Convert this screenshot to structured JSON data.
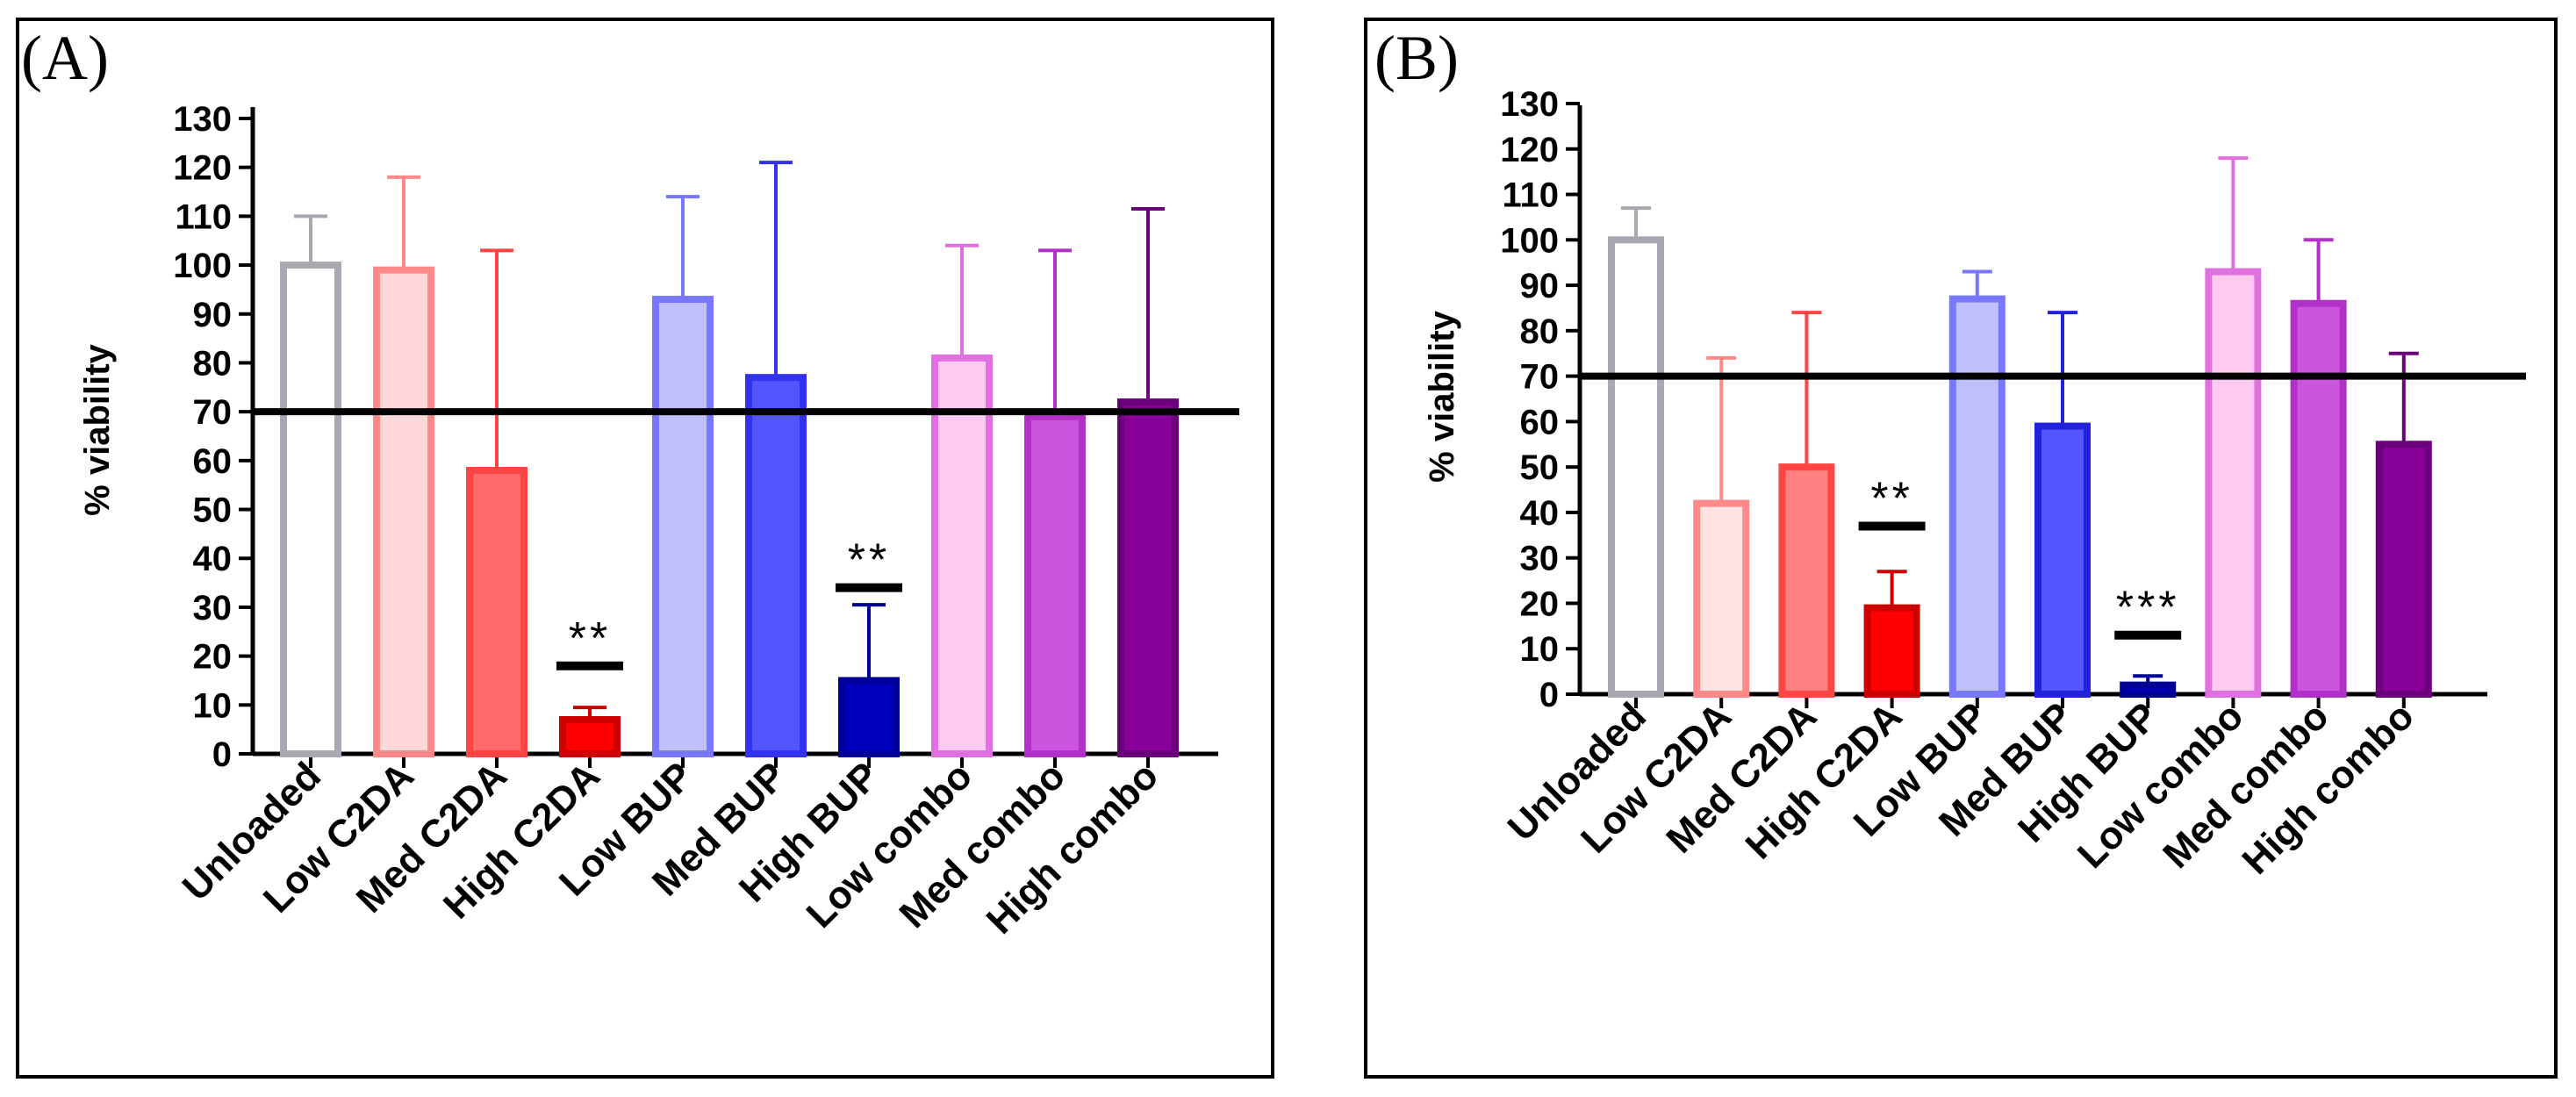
{
  "chart_data": [
    {
      "type": "bar",
      "panel_label": "(A)",
      "ylabel": "% viability",
      "xlabel": "",
      "ylim": [
        0,
        130
      ],
      "yticks": [
        0,
        10,
        20,
        30,
        40,
        50,
        60,
        70,
        80,
        90,
        100,
        110,
        120,
        130
      ],
      "reference_line": 70,
      "categories": [
        "Unloaded",
        "Low C2DA",
        "Med C2DA",
        "High C2DA",
        "Low BUP",
        "Med BUP",
        "High BUP",
        "Low combo",
        "Med combo",
        "High combo"
      ],
      "values": [
        100,
        99,
        58,
        7,
        93,
        77,
        15,
        81,
        69,
        72
      ],
      "errors": [
        10,
        19,
        45,
        2.5,
        21,
        44,
        15.5,
        23,
        34,
        39.5
      ],
      "colors": {
        "fill": [
          "#ffffff",
          "#ffd9d9",
          "#ff6b6b",
          "#ff0000",
          "#c0c0ff",
          "#5555ff",
          "#0000c0",
          "#ffcaf2",
          "#cc55dd",
          "#880099"
        ],
        "stroke": [
          "#a8a8b0",
          "#ff8888",
          "#ff4444",
          "#cc0000",
          "#7777ff",
          "#3333ee",
          "#000099",
          "#e070e0",
          "#b030c8",
          "#6a007a"
        ]
      },
      "significance": [
        {
          "category": "High C2DA",
          "label": "**",
          "y": 18
        },
        {
          "category": "High BUP",
          "label": "**",
          "y": 34
        }
      ]
    },
    {
      "type": "bar",
      "panel_label": "(B)",
      "ylabel": "% viability",
      "xlabel": "",
      "ylim": [
        0,
        130
      ],
      "yticks": [
        0,
        10,
        20,
        30,
        40,
        50,
        60,
        70,
        80,
        90,
        100,
        110,
        120,
        130
      ],
      "reference_line": 70,
      "categories": [
        "Unloaded",
        "Low C2DA",
        "Med C2DA",
        "High C2DA",
        "Low BUP",
        "Med BUP",
        "High BUP",
        "Low combo",
        "Med combo",
        "High combo"
      ],
      "values": [
        100,
        42,
        50,
        19,
        87,
        59,
        2,
        93,
        86,
        55
      ],
      "errors": [
        7,
        32,
        34,
        8,
        6,
        25,
        2,
        25,
        14,
        20
      ],
      "colors": {
        "fill": [
          "#ffffff",
          "#ffe2e2",
          "#ff8080",
          "#ff0000",
          "#c0c0ff",
          "#5555ff",
          "#0000c0",
          "#ffcaf2",
          "#cc55dd",
          "#880099"
        ],
        "stroke": [
          "#a8a8b0",
          "#ff8888",
          "#ff4444",
          "#cc0000",
          "#7777ff",
          "#2222dd",
          "#000099",
          "#e070e0",
          "#b030c8",
          "#6a007a"
        ]
      },
      "significance": [
        {
          "category": "High C2DA",
          "label": "**",
          "y": 37
        },
        {
          "category": "High BUP",
          "label": "***",
          "y": 13
        }
      ]
    }
  ]
}
